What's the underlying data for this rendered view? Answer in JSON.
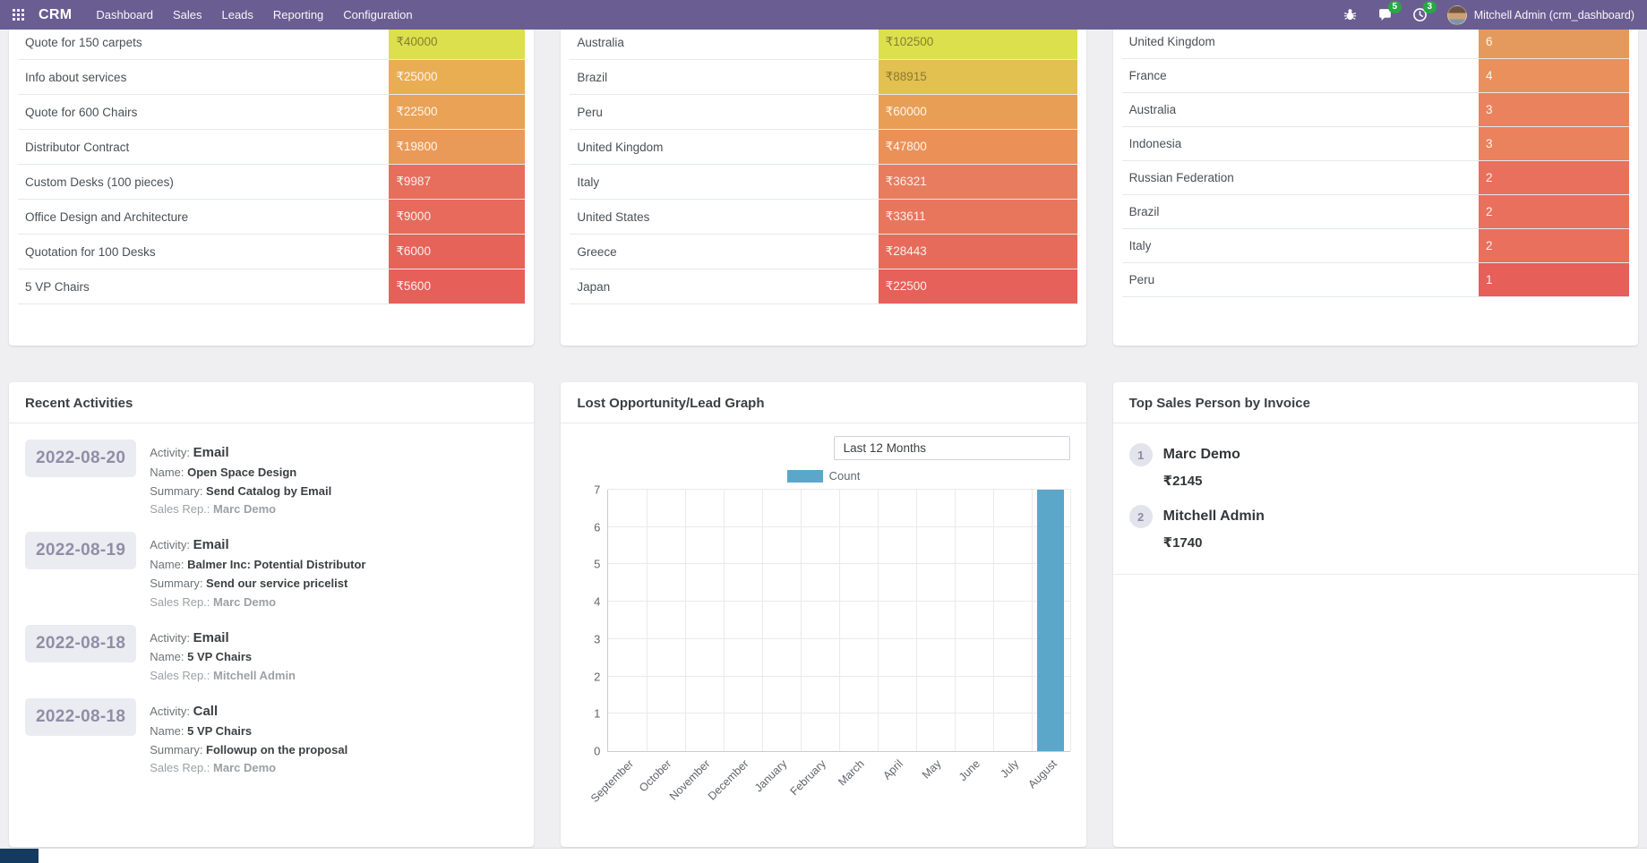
{
  "colors": {
    "navbar": "#6a5d92",
    "badge": "#28a745",
    "footer_box": "#143a5f"
  },
  "nav": {
    "app_name": "CRM",
    "items": [
      "Dashboard",
      "Sales",
      "Leads",
      "Reporting",
      "Configuration"
    ],
    "messages_badge": "5",
    "activities_badge": "3",
    "user": "Mitchell Admin (crm_dashboard)"
  },
  "tables": [
    {
      "id": "top-opportunities",
      "rows": [
        {
          "label": "Quote for 150 carpets",
          "value": "₹40000",
          "color": "#dde04d",
          "text": "#81812f"
        },
        {
          "label": "Info about services",
          "value": "₹25000",
          "color": "#e9ae52",
          "text": "#fdf6ee"
        },
        {
          "label": "Quote for 600 Chairs",
          "value": "₹22500",
          "color": "#eaa256",
          "text": "#fdf6ee"
        },
        {
          "label": "Distributor Contract",
          "value": "₹19800",
          "color": "#ea9a58",
          "text": "#fdf6ee"
        },
        {
          "label": "Custom Desks (100 pieces)",
          "value": "₹9987",
          "color": "#e76e5d",
          "text": "#fdf0ec"
        },
        {
          "label": "Office Design and Architecture",
          "value": "₹9000",
          "color": "#e76a5c",
          "text": "#fdf0ec"
        },
        {
          "label": "Quotation for 100 Desks",
          "value": "₹6000",
          "color": "#e6635a",
          "text": "#fdf0ec"
        },
        {
          "label": "5 VP Chairs",
          "value": "₹5600",
          "color": "#e66059",
          "text": "#fdf0ec"
        }
      ]
    },
    {
      "id": "country-revenue",
      "rows": [
        {
          "label": "Australia",
          "value": "₹102500",
          "color": "#dde04d",
          "text": "#81812f"
        },
        {
          "label": "Brazil",
          "value": "₹88915",
          "color": "#e2c150",
          "text": "#8d7a2e"
        },
        {
          "label": "Peru",
          "value": "₹60000",
          "color": "#e99e56",
          "text": "#fdf6ee"
        },
        {
          "label": "United Kingdom",
          "value": "₹47800",
          "color": "#eb9158",
          "text": "#fdf6ee"
        },
        {
          "label": "Italy",
          "value": "₹36321",
          "color": "#e87c5e",
          "text": "#fdf0ec"
        },
        {
          "label": "United States",
          "value": "₹33611",
          "color": "#e8765d",
          "text": "#fdf0ec"
        },
        {
          "label": "Greece",
          "value": "₹28443",
          "color": "#e76b5b",
          "text": "#fdf0ec"
        },
        {
          "label": "Japan",
          "value": "₹22500",
          "color": "#e66159",
          "text": "#fdf0ec"
        }
      ]
    },
    {
      "id": "country-count",
      "rows": [
        {
          "label": "United Kingdom",
          "value": "6",
          "color": "#e49a5d",
          "text": "#fdf6ee"
        },
        {
          "label": "France",
          "value": "4",
          "color": "#e9905c",
          "text": "#fdf6ee"
        },
        {
          "label": "Australia",
          "value": "3",
          "color": "#ea825e",
          "text": "#fdf6ee"
        },
        {
          "label": "Indonesia",
          "value": "3",
          "color": "#ea825e",
          "text": "#fdf6ee"
        },
        {
          "label": "Russian Federation",
          "value": "2",
          "color": "#e8705c",
          "text": "#fdf0ec"
        },
        {
          "label": "Brazil",
          "value": "2",
          "color": "#e8705c",
          "text": "#fdf0ec"
        },
        {
          "label": "Italy",
          "value": "2",
          "color": "#e8705c",
          "text": "#fdf0ec"
        },
        {
          "label": "Peru",
          "value": "1",
          "color": "#e65f58",
          "text": "#fdf0ec"
        }
      ]
    }
  ],
  "recent_activities": {
    "title": "Recent Activities",
    "labels": {
      "activity": "Activity:",
      "name": "Name:",
      "summary": "Summary:",
      "rep": "Sales Rep.:"
    },
    "items": [
      {
        "date": "2022-08-20",
        "activity": "Email",
        "name": "Open Space Design",
        "summary": "Send Catalog by Email",
        "rep": "Marc Demo"
      },
      {
        "date": "2022-08-19",
        "activity": "Email",
        "name": "Balmer Inc: Potential Distributor",
        "summary": "Send our service pricelist",
        "rep": "Marc Demo"
      },
      {
        "date": "2022-08-18",
        "activity": "Email",
        "name": "5 VP Chairs",
        "summary": "",
        "rep": "Mitchell Admin"
      },
      {
        "date": "2022-08-18",
        "activity": "Call",
        "name": "5 VP Chairs",
        "summary": "Followup on the proposal",
        "rep": "Marc Demo"
      }
    ]
  },
  "chart_data": {
    "type": "bar",
    "title": "Lost Opportunity/Lead Graph",
    "filter": "Last 12 Months",
    "legend": "Count",
    "categories": [
      "September",
      "October",
      "November",
      "December",
      "January",
      "February",
      "March",
      "April",
      "May",
      "June",
      "July",
      "August"
    ],
    "values": [
      0,
      0,
      0,
      0,
      0,
      0,
      0,
      0,
      0,
      0,
      0,
      7
    ],
    "ylim": [
      0,
      7
    ],
    "y_ticks": [
      0,
      1,
      2,
      3,
      4,
      5,
      6,
      7
    ],
    "bar_color": "#5ba7c9",
    "grid": true,
    "legend_position": "top"
  },
  "top_sales": {
    "title": "Top Sales Person by Invoice",
    "items": [
      {
        "rank": "1",
        "name": "Marc Demo",
        "amount": "₹2145"
      },
      {
        "rank": "2",
        "name": "Mitchell Admin",
        "amount": "₹1740"
      }
    ]
  }
}
